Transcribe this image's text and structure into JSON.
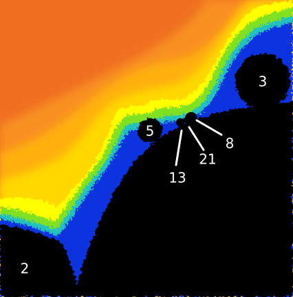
{
  "labels": {
    "period_2": "2",
    "period_3": "3",
    "period_5": "5",
    "period_8": "8",
    "period_13": "13",
    "period_21": "21"
  },
  "colors": {
    "interior": "#000000",
    "outer_band": "#f07020",
    "band_2": "#f89020",
    "band_3": "#ffb010",
    "band_4": "#ffd800",
    "band_5": "#ffff00",
    "edge_green": "#80e020",
    "edge_cyan": "#20c0c0",
    "edge_blue": "#1030e0",
    "label_text": "#ffffff"
  }
}
